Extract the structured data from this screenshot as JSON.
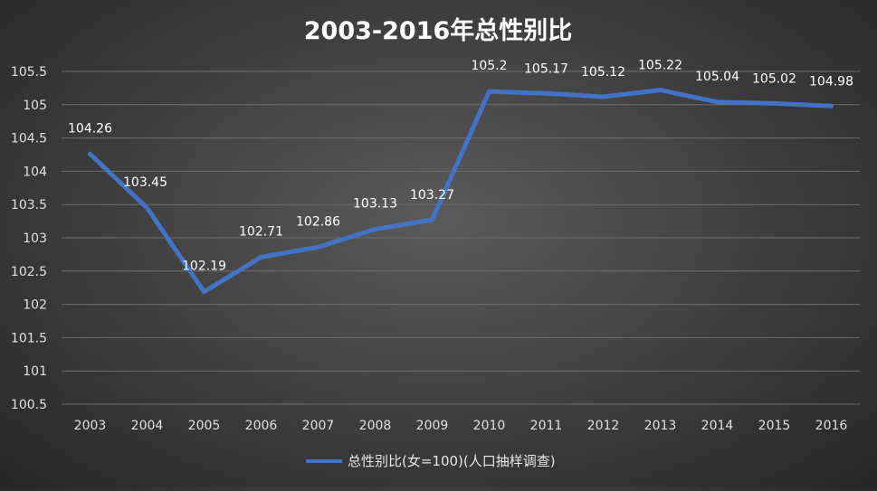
{
  "chart_data": {
    "type": "line",
    "title": "2003-2016年总性别比",
    "xlabel": "",
    "ylabel": "",
    "categories": [
      "2003",
      "2004",
      "2005",
      "2006",
      "2007",
      "2008",
      "2009",
      "2010",
      "2011",
      "2012",
      "2013",
      "2014",
      "2015",
      "2016"
    ],
    "series": [
      {
        "name": "总性别比(女=100)(人口抽样调查)",
        "values": [
          104.26,
          103.45,
          102.19,
          102.71,
          102.86,
          103.13,
          103.27,
          105.2,
          105.17,
          105.12,
          105.22,
          105.04,
          105.02,
          104.98
        ],
        "labels": [
          "104.26",
          "103.45",
          "102.19",
          "102.71",
          "102.86",
          "103.13",
          "103.27",
          "105.2",
          "105.17",
          "105.12",
          "105.22",
          "105.04",
          "105.02",
          "104.98"
        ],
        "color": "#4472C4"
      }
    ],
    "ylim": [
      100.5,
      105.5
    ],
    "yticks": [
      "100.5",
      "101",
      "101.5",
      "102",
      "102.5",
      "103",
      "103.5",
      "104",
      "104.5",
      "105",
      "105.5"
    ],
    "grid": true,
    "legend_position": "bottom"
  }
}
